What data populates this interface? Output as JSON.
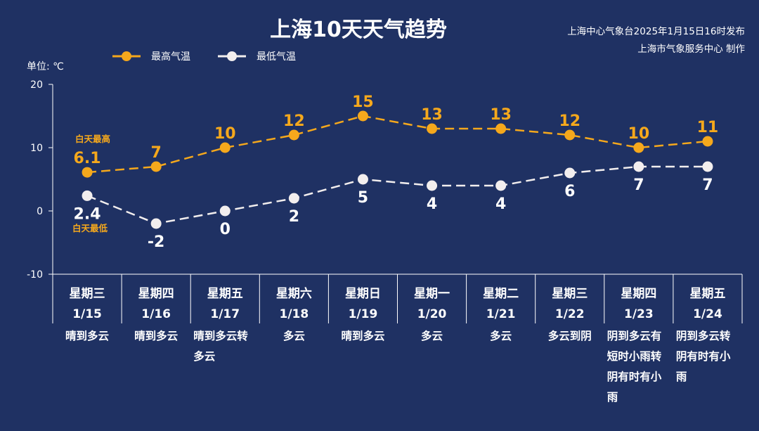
{
  "colors": {
    "background": "#1f3163",
    "high_line": "#f5a81c",
    "low_line": "#f2eeee",
    "text": "#ffffff",
    "axis": "#ffffff"
  },
  "header": {
    "title": "上海10天天气趋势",
    "publisher_line1": "上海中心气象台2025年1月15日16时发布",
    "publisher_line2": "上海市气象服务中心 制作"
  },
  "chart_data": {
    "type": "line",
    "title": "上海10天天气趋势",
    "unit_label": "单位: ℃",
    "ylim": [
      -10,
      20
    ],
    "yticks": [
      -10,
      0,
      10,
      20
    ],
    "legend_position": "top-left",
    "categories": [
      "1/15",
      "1/16",
      "1/17",
      "1/18",
      "1/19",
      "1/20",
      "1/21",
      "1/22",
      "1/23",
      "1/24"
    ],
    "weekdays": [
      "星期三",
      "星期四",
      "星期五",
      "星期六",
      "星期日",
      "星期一",
      "星期二",
      "星期三",
      "星期四",
      "星期五"
    ],
    "weather": [
      [
        "晴到多云"
      ],
      [
        "晴到多云"
      ],
      [
        "晴到多云转",
        "多云"
      ],
      [
        "多云"
      ],
      [
        "晴到多云"
      ],
      [
        "多云"
      ],
      [
        "多云"
      ],
      [
        "多云到阴"
      ],
      [
        "阴到多云有",
        "短时小雨转",
        "阴有时有小",
        "雨"
      ],
      [
        "阴到多云转",
        "阴有时有小",
        "雨"
      ]
    ],
    "series": [
      {
        "name": "最高气温",
        "values": [
          6.1,
          7,
          10,
          12,
          15,
          13,
          13,
          12,
          10,
          11
        ],
        "labels": [
          "6.1",
          "7",
          "10",
          "12",
          "15",
          "13",
          "13",
          "12",
          "10",
          "11"
        ]
      },
      {
        "name": "最低气温",
        "values": [
          2.4,
          -2,
          0,
          2,
          5,
          4,
          4,
          6,
          7,
          7
        ],
        "labels": [
          "2.4",
          "-2",
          "0",
          "2",
          "5",
          "4",
          "4",
          "6",
          "7",
          "7"
        ]
      }
    ],
    "annotations": {
      "high_note": "白天最高",
      "low_note": "白天最低"
    }
  }
}
